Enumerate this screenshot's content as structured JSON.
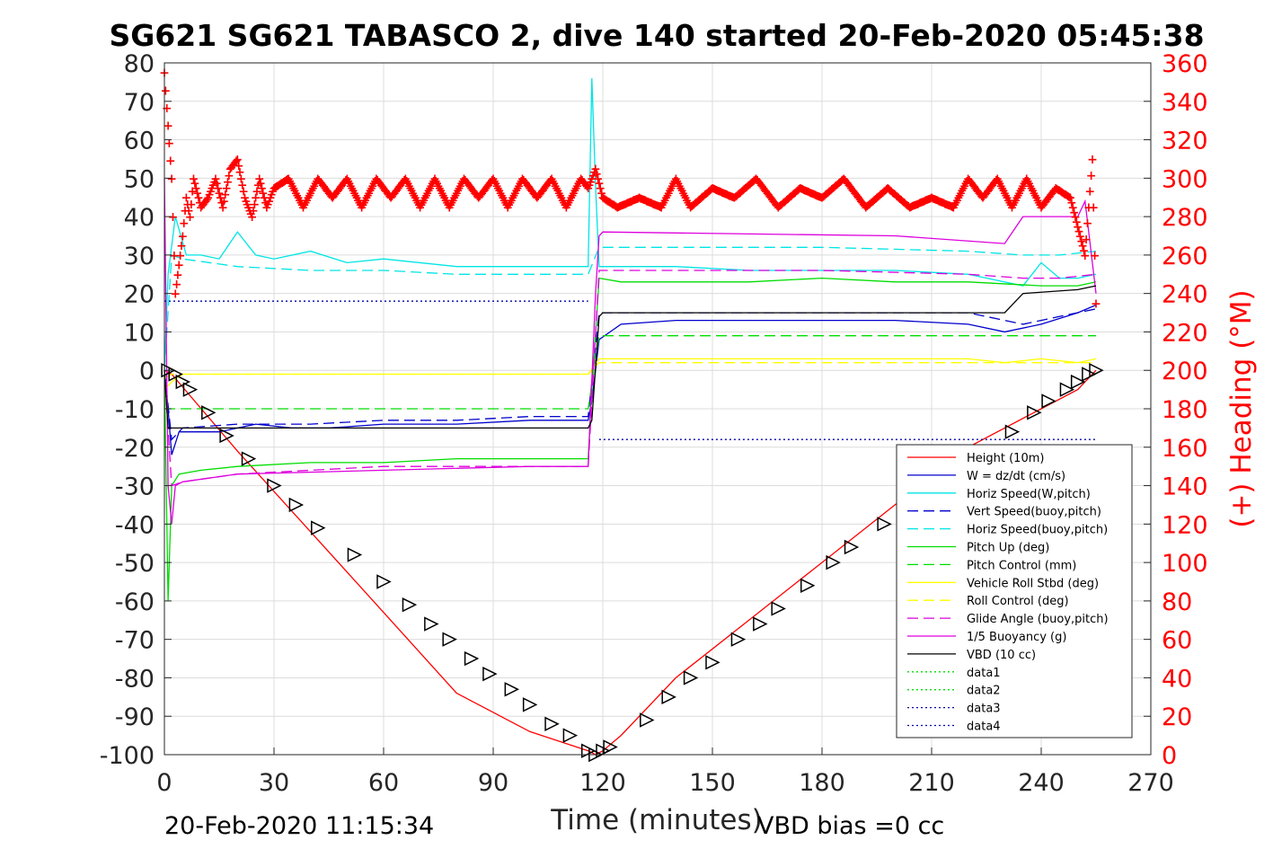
{
  "chart_data": {
    "type": "line",
    "title": "SG621 SG621 TABASCO 2, dive 140 started 20-Feb-2020 05:45:38",
    "xlabel": "Time (minutes)",
    "ylabel": "",
    "y2label": "(+) Heading (°M)",
    "xlim": [
      0,
      270
    ],
    "ylim": [
      -100,
      80
    ],
    "y2lim": [
      0,
      360
    ],
    "xticks": [
      "0",
      "30",
      "60",
      "90",
      "120",
      "150",
      "180",
      "210",
      "240",
      "270"
    ],
    "yticks": [
      "80",
      "70",
      "60",
      "50",
      "40",
      "30",
      "20",
      "10",
      "0",
      "-10",
      "-20",
      "-30",
      "-40",
      "-50",
      "-60",
      "-70",
      "-80",
      "-90",
      "-100"
    ],
    "y2ticks": [
      "360",
      "340",
      "320",
      "300",
      "280",
      "260",
      "240",
      "220",
      "200",
      "180",
      "160",
      "140",
      "120",
      "100",
      "80",
      "60",
      "40",
      "20",
      "0"
    ],
    "grid": true,
    "legend_position": "bottom-right",
    "colors": {
      "height": "#ff0000",
      "w": "#0000cc",
      "horiz": "#00e5e5",
      "pitch": "#00dd00",
      "roll": "#ffff00",
      "glide": "#dd00dd",
      "vbd": "#000000",
      "heading": "#ff0000",
      "data12": "#00dd00",
      "data34": "#0000aa"
    },
    "series": [
      {
        "name": "Height (10m)",
        "x": [
          0,
          2,
          20,
          40,
          60,
          80,
          100,
          116,
          118,
          120,
          125,
          140,
          160,
          180,
          200,
          220,
          240,
          250,
          255
        ],
        "y": [
          0,
          -1,
          -21,
          -42,
          -63,
          -84,
          -94,
          -99,
          -100,
          -99,
          -95,
          -80,
          -65,
          -50,
          -35,
          -20,
          -10,
          -5,
          0
        ]
      },
      {
        "name": "W = dz/dt (cm/s)",
        "x": [
          0,
          1,
          2,
          4,
          8,
          15,
          25,
          35,
          45,
          60,
          80,
          100,
          116,
          117,
          119,
          125,
          140,
          160,
          180,
          200,
          220,
          230,
          240,
          250,
          255
        ],
        "y": [
          0,
          -10,
          -22,
          -16,
          -16,
          -16,
          -14,
          -15,
          -15,
          -14,
          -14,
          -13,
          -13,
          -8,
          8,
          12,
          13,
          13,
          13,
          13,
          12,
          10,
          12,
          15,
          17
        ]
      },
      {
        "name": "Horiz Speed(W,pitch)",
        "x": [
          0,
          1,
          3,
          6,
          10,
          15,
          20,
          25,
          30,
          40,
          50,
          60,
          80,
          100,
          116,
          117,
          118,
          119,
          120,
          125,
          140,
          160,
          180,
          200,
          220,
          235,
          240,
          245,
          250,
          255
        ],
        "y": [
          0,
          25,
          40,
          30,
          30,
          29,
          36,
          30,
          29,
          31,
          28,
          29,
          27,
          27,
          27,
          76,
          48,
          27,
          27,
          27,
          27,
          26,
          26,
          26,
          25,
          22,
          28,
          24,
          24,
          25
        ]
      },
      {
        "name": "Vert Speed(buoy,pitch)",
        "x": [
          0,
          2,
          5,
          20,
          40,
          60,
          80,
          100,
          116,
          119,
          140,
          180,
          220,
          235,
          245,
          255
        ],
        "y": [
          0,
          -18,
          -15,
          -14,
          -14,
          -13,
          -13,
          -12,
          -12,
          15,
          15,
          15,
          15,
          12,
          14,
          16
        ]
      },
      {
        "name": "Horiz Speed(buoy,pitch)",
        "x": [
          0,
          2,
          5,
          20,
          40,
          60,
          80,
          100,
          116,
          119,
          140,
          180,
          220,
          235,
          245,
          255
        ],
        "y": [
          0,
          30,
          29,
          27,
          26,
          26,
          25,
          25,
          25,
          32,
          32,
          32,
          31,
          30,
          30,
          31
        ]
      },
      {
        "name": "Pitch Up (deg)",
        "x": [
          0,
          1,
          2,
          4,
          10,
          20,
          40,
          60,
          80,
          100,
          116,
          117,
          119,
          125,
          140,
          160,
          180,
          200,
          220,
          240,
          250,
          255
        ],
        "y": [
          0,
          -60,
          -30,
          -27,
          -26,
          -25,
          -24,
          -24,
          -23,
          -23,
          -23,
          -5,
          24,
          23,
          23,
          23,
          24,
          23,
          23,
          22,
          22,
          23
        ]
      },
      {
        "name": "Pitch Control (mm)",
        "x": [
          0,
          4,
          116,
          119,
          255
        ],
        "y": [
          -10,
          -10,
          -10,
          9,
          9
        ]
      },
      {
        "name": "Vehicle Roll Stbd (deg)",
        "x": [
          0,
          2,
          5,
          10,
          20,
          40,
          60,
          80,
          100,
          116,
          119,
          130,
          160,
          190,
          220,
          230,
          240,
          250,
          255
        ],
        "y": [
          -5,
          -3,
          -1,
          -1,
          -1,
          -1,
          -1,
          -1,
          -1,
          -1,
          3,
          3,
          3,
          3,
          3,
          2,
          3,
          2,
          3
        ]
      },
      {
        "name": "Roll Control (deg)",
        "x": [
          0,
          2,
          116,
          119,
          255
        ],
        "y": [
          -2,
          -1,
          -1,
          2,
          2
        ]
      },
      {
        "name": "Glide Angle (buoy,pitch)",
        "x": [
          0,
          2,
          5,
          20,
          40,
          60,
          80,
          100,
          116,
          119,
          140,
          180,
          220,
          235,
          245,
          255
        ],
        "y": [
          0,
          -30,
          -29,
          -27,
          -26,
          -25,
          -25,
          -25,
          -25,
          26,
          26,
          26,
          25,
          24,
          24,
          25
        ]
      },
      {
        "name": "1/5 Buoyancy (g)",
        "x": [
          0,
          1,
          2,
          3,
          5,
          20,
          60,
          100,
          116,
          118,
          119,
          120,
          200,
          230,
          235,
          250,
          252,
          255
        ],
        "y": [
          50,
          -30,
          -40,
          -30,
          -29,
          -27,
          -26,
          -25,
          -25,
          20,
          35,
          36,
          35,
          33,
          40,
          40,
          44,
          20
        ]
      },
      {
        "name": "VBD (10 cc)",
        "x": [
          0,
          1,
          2,
          116,
          117,
          119,
          120,
          230,
          235,
          250,
          255
        ],
        "y": [
          0,
          -15,
          -15,
          -15,
          -13,
          14,
          15,
          15,
          20,
          21,
          22
        ]
      },
      {
        "name": "data1",
        "x": [],
        "y": []
      },
      {
        "name": "data2",
        "x": [],
        "y": []
      },
      {
        "name": "data3",
        "x": [
          0,
          116
        ],
        "y": [
          18,
          18
        ]
      },
      {
        "name": "data4",
        "x": [
          119,
          255
        ],
        "y": [
          -18,
          -18
        ]
      }
    ],
    "heading": {
      "name": "Heading",
      "axis": "right",
      "x": [
        0,
        2,
        3,
        4,
        5,
        6,
        7,
        8,
        10,
        12,
        14,
        16,
        18,
        20,
        22,
        24,
        26,
        28,
        30,
        34,
        38,
        42,
        46,
        50,
        54,
        58,
        62,
        66,
        70,
        74,
        78,
        82,
        86,
        90,
        94,
        98,
        102,
        106,
        110,
        114,
        116,
        118,
        120,
        124,
        130,
        136,
        140,
        144,
        150,
        156,
        162,
        168,
        174,
        180,
        186,
        192,
        198,
        204,
        210,
        216,
        220,
        224,
        228,
        232,
        236,
        240,
        244,
        248,
        250,
        252,
        254,
        255
      ],
      "y": [
        355,
        300,
        240,
        255,
        270,
        290,
        280,
        300,
        285,
        290,
        300,
        285,
        305,
        310,
        290,
        280,
        300,
        285,
        295,
        300,
        285,
        300,
        290,
        300,
        285,
        300,
        290,
        300,
        285,
        300,
        285,
        300,
        290,
        300,
        285,
        300,
        290,
        300,
        285,
        300,
        295,
        305,
        290,
        285,
        290,
        285,
        300,
        285,
        295,
        290,
        300,
        285,
        295,
        290,
        300,
        285,
        295,
        285,
        290,
        285,
        300,
        290,
        300,
        285,
        300,
        285,
        295,
        290,
        275,
        260,
        310,
        235
      ]
    },
    "markers": {
      "symbol": "triangle",
      "x": [
        1,
        3,
        5,
        7,
        12,
        17,
        23,
        30,
        36,
        42,
        52,
        60,
        67,
        73,
        78,
        84,
        89,
        95,
        100,
        106,
        111,
        116,
        118,
        120,
        122,
        132,
        138,
        144,
        150,
        157,
        163,
        168,
        176,
        183,
        188,
        197,
        232,
        238,
        242,
        247,
        250,
        253,
        255
      ],
      "y": [
        0,
        -1,
        -3,
        -5,
        -11,
        -17,
        -23,
        -30,
        -35,
        -41,
        -48,
        -55,
        -61,
        -66,
        -70,
        -75,
        -79,
        -83,
        -87,
        -92,
        -95,
        -99,
        -100,
        -99,
        -98,
        -91,
        -85,
        -80,
        -76,
        -70,
        -66,
        -62,
        -56,
        -50,
        -46,
        -40,
        -16,
        -11,
        -8,
        -5,
        -3,
        -1,
        0
      ]
    },
    "annotations": [
      "20-Feb-2020 11:15:34",
      "VBD bias =0 cc"
    ]
  }
}
